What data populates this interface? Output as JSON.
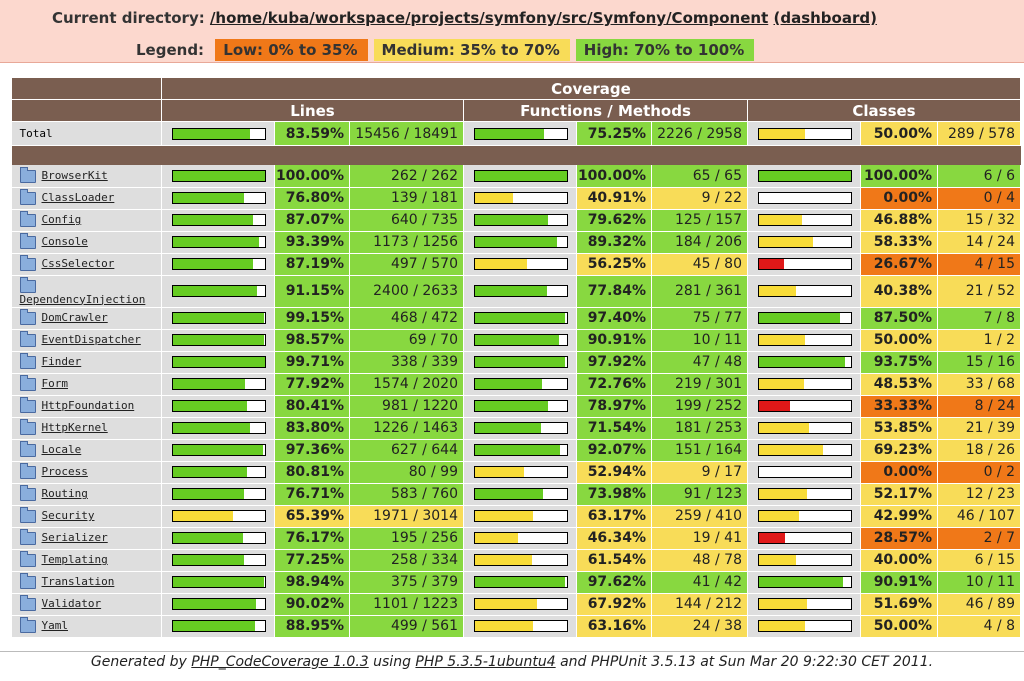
{
  "header": {
    "dir_label": "Current directory:",
    "dir_path": "/home/kuba/workspace/projects/symfony/src/Symfony/Component",
    "dashboard_link": "(dashboard)",
    "legend_label": "Legend:",
    "legend_low": "Low: 0% to 35%",
    "legend_medium": "Medium: 35% to 70%",
    "legend_high": "High: 70% to 100%"
  },
  "table": {
    "coverage_header": "Coverage",
    "lines_header": "Lines",
    "functions_header": "Functions / Methods",
    "classes_header": "Classes",
    "total": {
      "name": "Total",
      "lines_pct": "83.59%",
      "lines_cnt": "15456 / 18491",
      "lines_val": 83.59,
      "funcs_pct": "75.25%",
      "funcs_cnt": "2226 / 2958",
      "funcs_val": 75.25,
      "classes_pct": "50.00%",
      "classes_cnt": "289 / 578",
      "classes_val": 50.0
    },
    "rows": [
      {
        "name": "BrowserKit",
        "lines_pct": "100.00%",
        "lines_cnt": "262 / 262",
        "lines_val": 100,
        "funcs_pct": "100.00%",
        "funcs_cnt": "65 / 65",
        "funcs_val": 100,
        "classes_pct": "100.00%",
        "classes_cnt": "6 / 6",
        "classes_val": 100
      },
      {
        "name": "ClassLoader",
        "lines_pct": "76.80%",
        "lines_cnt": "139 / 181",
        "lines_val": 76.8,
        "funcs_pct": "40.91%",
        "funcs_cnt": "9 / 22",
        "funcs_val": 40.91,
        "classes_pct": "0.00%",
        "classes_cnt": "0 / 4",
        "classes_val": 0
      },
      {
        "name": "Config",
        "lines_pct": "87.07%",
        "lines_cnt": "640 / 735",
        "lines_val": 87.07,
        "funcs_pct": "79.62%",
        "funcs_cnt": "125 / 157",
        "funcs_val": 79.62,
        "classes_pct": "46.88%",
        "classes_cnt": "15 / 32",
        "classes_val": 46.88
      },
      {
        "name": "Console",
        "lines_pct": "93.39%",
        "lines_cnt": "1173 / 1256",
        "lines_val": 93.39,
        "funcs_pct": "89.32%",
        "funcs_cnt": "184 / 206",
        "funcs_val": 89.32,
        "classes_pct": "58.33%",
        "classes_cnt": "14 / 24",
        "classes_val": 58.33
      },
      {
        "name": "CssSelector",
        "lines_pct": "87.19%",
        "lines_cnt": "497 / 570",
        "lines_val": 87.19,
        "funcs_pct": "56.25%",
        "funcs_cnt": "45 / 80",
        "funcs_val": 56.25,
        "classes_pct": "26.67%",
        "classes_cnt": "4 / 15",
        "classes_val": 26.67
      },
      {
        "name": "DependencyInjection",
        "lines_pct": "91.15%",
        "lines_cnt": "2400 / 2633",
        "lines_val": 91.15,
        "funcs_pct": "77.84%",
        "funcs_cnt": "281 / 361",
        "funcs_val": 77.84,
        "classes_pct": "40.38%",
        "classes_cnt": "21 / 52",
        "classes_val": 40.38
      },
      {
        "name": "DomCrawler",
        "lines_pct": "99.15%",
        "lines_cnt": "468 / 472",
        "lines_val": 99.15,
        "funcs_pct": "97.40%",
        "funcs_cnt": "75 / 77",
        "funcs_val": 97.4,
        "classes_pct": "87.50%",
        "classes_cnt": "7 / 8",
        "classes_val": 87.5
      },
      {
        "name": "EventDispatcher",
        "lines_pct": "98.57%",
        "lines_cnt": "69 / 70",
        "lines_val": 98.57,
        "funcs_pct": "90.91%",
        "funcs_cnt": "10 / 11",
        "funcs_val": 90.91,
        "classes_pct": "50.00%",
        "classes_cnt": "1 / 2",
        "classes_val": 50
      },
      {
        "name": "Finder",
        "lines_pct": "99.71%",
        "lines_cnt": "338 / 339",
        "lines_val": 99.71,
        "funcs_pct": "97.92%",
        "funcs_cnt": "47 / 48",
        "funcs_val": 97.92,
        "classes_pct": "93.75%",
        "classes_cnt": "15 / 16",
        "classes_val": 93.75
      },
      {
        "name": "Form",
        "lines_pct": "77.92%",
        "lines_cnt": "1574 / 2020",
        "lines_val": 77.92,
        "funcs_pct": "72.76%",
        "funcs_cnt": "219 / 301",
        "funcs_val": 72.76,
        "classes_pct": "48.53%",
        "classes_cnt": "33 / 68",
        "classes_val": 48.53
      },
      {
        "name": "HttpFoundation",
        "lines_pct": "80.41%",
        "lines_cnt": "981 / 1220",
        "lines_val": 80.41,
        "funcs_pct": "78.97%",
        "funcs_cnt": "199 / 252",
        "funcs_val": 78.97,
        "classes_pct": "33.33%",
        "classes_cnt": "8 / 24",
        "classes_val": 33.33
      },
      {
        "name": "HttpKernel",
        "lines_pct": "83.80%",
        "lines_cnt": "1226 / 1463",
        "lines_val": 83.8,
        "funcs_pct": "71.54%",
        "funcs_cnt": "181 / 253",
        "funcs_val": 71.54,
        "classes_pct": "53.85%",
        "classes_cnt": "21 / 39",
        "classes_val": 53.85
      },
      {
        "name": "Locale",
        "lines_pct": "97.36%",
        "lines_cnt": "627 / 644",
        "lines_val": 97.36,
        "funcs_pct": "92.07%",
        "funcs_cnt": "151 / 164",
        "funcs_val": 92.07,
        "classes_pct": "69.23%",
        "classes_cnt": "18 / 26",
        "classes_val": 69.23
      },
      {
        "name": "Process",
        "lines_pct": "80.81%",
        "lines_cnt": "80 / 99",
        "lines_val": 80.81,
        "funcs_pct": "52.94%",
        "funcs_cnt": "9 / 17",
        "funcs_val": 52.94,
        "classes_pct": "0.00%",
        "classes_cnt": "0 / 2",
        "classes_val": 0
      },
      {
        "name": "Routing",
        "lines_pct": "76.71%",
        "lines_cnt": "583 / 760",
        "lines_val": 76.71,
        "funcs_pct": "73.98%",
        "funcs_cnt": "91 / 123",
        "funcs_val": 73.98,
        "classes_pct": "52.17%",
        "classes_cnt": "12 / 23",
        "classes_val": 52.17
      },
      {
        "name": "Security",
        "lines_pct": "65.39%",
        "lines_cnt": "1971 / 3014",
        "lines_val": 65.39,
        "funcs_pct": "63.17%",
        "funcs_cnt": "259 / 410",
        "funcs_val": 63.17,
        "classes_pct": "42.99%",
        "classes_cnt": "46 / 107",
        "classes_val": 42.99
      },
      {
        "name": "Serializer",
        "lines_pct": "76.17%",
        "lines_cnt": "195 / 256",
        "lines_val": 76.17,
        "funcs_pct": "46.34%",
        "funcs_cnt": "19 / 41",
        "funcs_val": 46.34,
        "classes_pct": "28.57%",
        "classes_cnt": "2 / 7",
        "classes_val": 28.57
      },
      {
        "name": "Templating",
        "lines_pct": "77.25%",
        "lines_cnt": "258 / 334",
        "lines_val": 77.25,
        "funcs_pct": "61.54%",
        "funcs_cnt": "48 / 78",
        "funcs_val": 61.54,
        "classes_pct": "40.00%",
        "classes_cnt": "6 / 15",
        "classes_val": 40
      },
      {
        "name": "Translation",
        "lines_pct": "98.94%",
        "lines_cnt": "375 / 379",
        "lines_val": 98.94,
        "funcs_pct": "97.62%",
        "funcs_cnt": "41 / 42",
        "funcs_val": 97.62,
        "classes_pct": "90.91%",
        "classes_cnt": "10 / 11",
        "classes_val": 90.91
      },
      {
        "name": "Validator",
        "lines_pct": "90.02%",
        "lines_cnt": "1101 / 1223",
        "lines_val": 90.02,
        "funcs_pct": "67.92%",
        "funcs_cnt": "144 / 212",
        "funcs_val": 67.92,
        "classes_pct": "51.69%",
        "classes_cnt": "46 / 89",
        "classes_val": 51.69
      },
      {
        "name": "Yaml",
        "lines_pct": "88.95%",
        "lines_cnt": "499 / 561",
        "lines_val": 88.95,
        "funcs_pct": "63.16%",
        "funcs_cnt": "24 / 38",
        "funcs_val": 63.16,
        "classes_pct": "50.00%",
        "classes_cnt": "4 / 8",
        "classes_val": 50
      }
    ]
  },
  "footer": {
    "generated_by": "Generated by",
    "tool_link": "PHP_CodeCoverage 1.0.3",
    "using": "using",
    "php_link": "PHP 5.3.5-1ubuntu4",
    "rest": "and PHPUnit 3.5.13 at Sun Mar 20 9:22:30 CET 2011."
  }
}
